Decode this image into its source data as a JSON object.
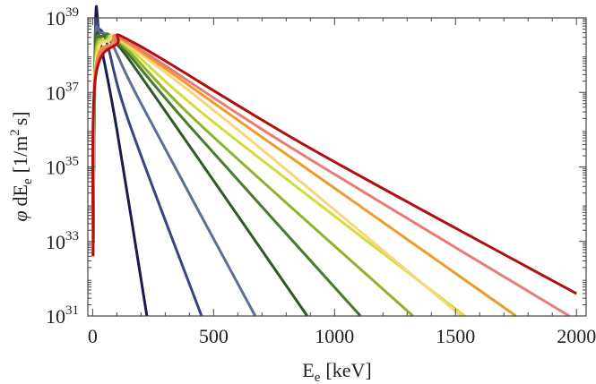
{
  "chart_data": {
    "type": "line",
    "xlabel": "E_e [keV]",
    "xlabel_parts": {
      "main": "E",
      "sub": "e",
      "unit": "[keV]"
    },
    "ylabel": "φ dE_e [1/m^2 s]",
    "ylabel_parts": {
      "phi": "φ",
      "d": "dE",
      "sub": "e",
      "unit_start": "[1/m",
      "sup": "2",
      "unit_end": "s]"
    },
    "xlim": [
      -20,
      2040
    ],
    "ylim_log10": [
      31,
      39
    ],
    "y_scale": "log",
    "x_ticks": [
      0,
      500,
      1000,
      1500,
      2000
    ],
    "x_tick_labels": [
      "0",
      "500",
      "1000",
      "1500",
      "2000"
    ],
    "y_ticks_log10": [
      31,
      33,
      35,
      37,
      39
    ],
    "y_tick_labels": [
      {
        "base": "10",
        "exp": "31"
      },
      {
        "base": "10",
        "exp": "33"
      },
      {
        "base": "10",
        "exp": "35"
      },
      {
        "base": "10",
        "exp": "37"
      },
      {
        "base": "10",
        "exp": "39"
      }
    ],
    "grid": false,
    "frame": true,
    "series": [
      {
        "color": "#1a1a4e",
        "points": [
          [
            2,
            32.6
          ],
          [
            12,
            38.9
          ],
          [
            30,
            38.4
          ],
          [
            100,
            36.0
          ],
          [
            224,
            31.0
          ]
        ]
      },
      {
        "color": "#3a4480",
        "points": [
          [
            2,
            32.6
          ],
          [
            10,
            38.4
          ],
          [
            25,
            38.7
          ],
          [
            60,
            38.3
          ],
          [
            150,
            36.2
          ],
          [
            450,
            31.0
          ]
        ]
      },
      {
        "color": "#5e6e94",
        "points": [
          [
            2,
            32.6
          ],
          [
            10,
            38.2
          ],
          [
            30,
            38.6
          ],
          [
            80,
            38.3
          ],
          [
            200,
            36.7
          ],
          [
            672,
            31.0
          ]
        ]
      },
      {
        "color": "#2f5a24",
        "points": [
          [
            2,
            32.6
          ],
          [
            10,
            38.0
          ],
          [
            35,
            38.5
          ],
          [
            100,
            38.3
          ],
          [
            300,
            36.5
          ],
          [
            887,
            31.0
          ]
        ]
      },
      {
        "color": "#4a7a2e",
        "points": [
          [
            2,
            32.6
          ],
          [
            10,
            37.9
          ],
          [
            40,
            38.5
          ],
          [
            110,
            38.3
          ],
          [
            400,
            36.1
          ],
          [
            1107,
            31.0
          ]
        ]
      },
      {
        "color": "#8cb32a",
        "points": [
          [
            2,
            32.6
          ],
          [
            10,
            37.8
          ],
          [
            50,
            38.4
          ],
          [
            120,
            38.3
          ],
          [
            450,
            36.1
          ],
          [
            1324,
            31.0
          ]
        ]
      },
      {
        "color": "#d3dc3a",
        "points": [
          [
            2,
            32.6
          ],
          [
            10,
            37.7
          ],
          [
            60,
            38.4
          ],
          [
            130,
            38.3
          ],
          [
            500,
            36.2
          ],
          [
            1538,
            31.0
          ]
        ]
      },
      {
        "color": "#fad57f",
        "points": [
          [
            2,
            32.6
          ],
          [
            10,
            37.6
          ],
          [
            70,
            38.4
          ],
          [
            140,
            38.3
          ],
          [
            600,
            36.0
          ],
          [
            1523,
            31.0
          ]
        ]
      },
      {
        "color": "#ef9a2a",
        "points": [
          [
            2,
            32.6
          ],
          [
            10,
            37.5
          ],
          [
            80,
            38.3
          ],
          [
            150,
            38.3
          ],
          [
            700,
            35.8
          ],
          [
            1750,
            31.0
          ]
        ]
      },
      {
        "color": "#e87b72",
        "points": [
          [
            2,
            32.6
          ],
          [
            10,
            37.4
          ],
          [
            90,
            38.3
          ],
          [
            160,
            38.3
          ],
          [
            800,
            35.6
          ],
          [
            1970,
            31.0
          ]
        ]
      },
      {
        "color": "#b01010",
        "points": [
          [
            2,
            32.6
          ],
          [
            10,
            37.3
          ],
          [
            100,
            38.3
          ],
          [
            180,
            38.3
          ],
          [
            900,
            35.5
          ],
          [
            2000,
            31.6
          ]
        ]
      }
    ]
  }
}
